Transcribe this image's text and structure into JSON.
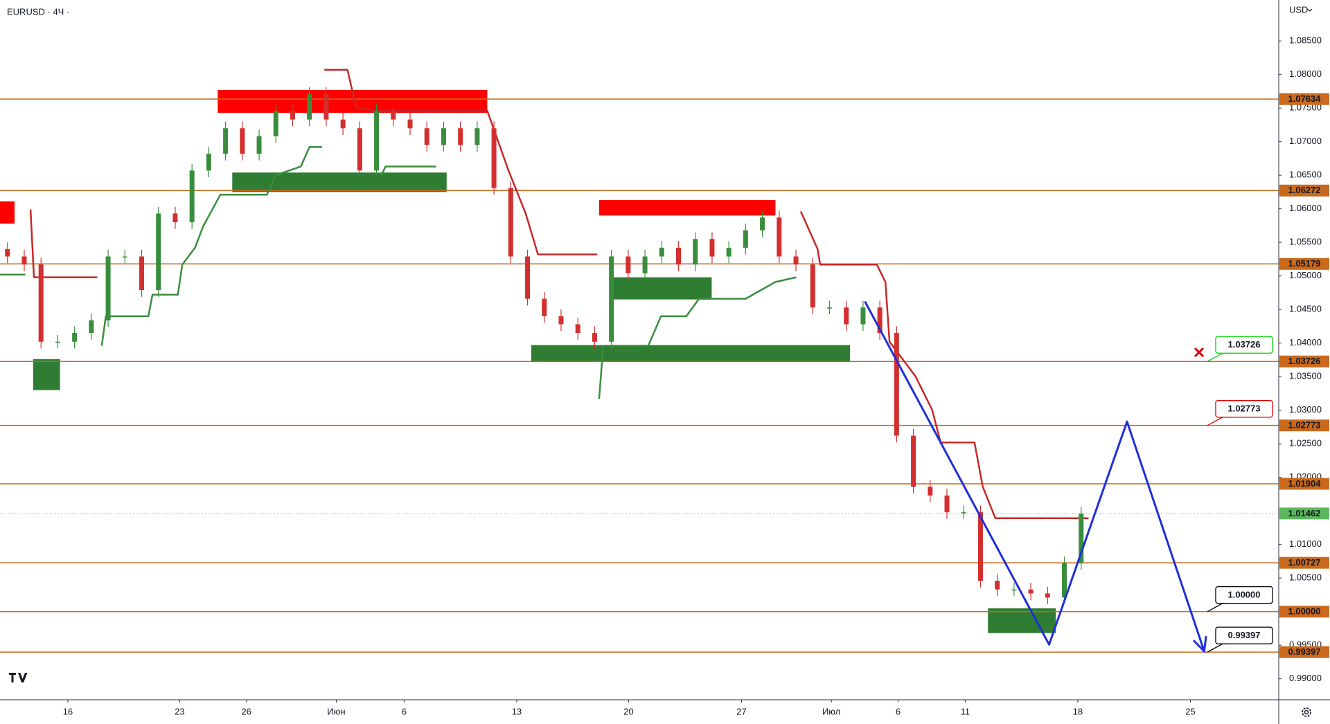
{
  "chart_data": {
    "type": "candlestick",
    "title": "EURUSD · 4Ч ·",
    "currency": "USD",
    "xlim": [
      0,
      343
    ],
    "ylim": [
      0.98687,
      1.0911
    ],
    "xticks": [
      {
        "value": 18.2,
        "label": "16"
      },
      {
        "value": 48.2,
        "label": "23"
      },
      {
        "value": 66.1,
        "label": "26"
      },
      {
        "value": 90.2,
        "label": "Июн"
      },
      {
        "value": 108.4,
        "label": "6"
      },
      {
        "value": 138.6,
        "label": "13"
      },
      {
        "value": 168.6,
        "label": "20"
      },
      {
        "value": 198.9,
        "label": "27"
      },
      {
        "value": 223,
        "label": "Июл"
      },
      {
        "value": 240.9,
        "label": "6"
      },
      {
        "value": 258.9,
        "label": "11"
      },
      {
        "value": 289.1,
        "label": "18"
      },
      {
        "value": 319.3,
        "label": "25"
      }
    ],
    "yticks": [
      {
        "value": 1.085,
        "label": "1.08500"
      },
      {
        "value": 1.08,
        "label": "1.08000"
      },
      {
        "value": 1.075,
        "label": "1.07500"
      },
      {
        "value": 1.07,
        "label": "1.07000"
      },
      {
        "value": 1.065,
        "label": "1.06500"
      },
      {
        "value": 1.06,
        "label": "1.06000"
      },
      {
        "value": 1.055,
        "label": "1.05500"
      },
      {
        "value": 1.05,
        "label": "1.05000"
      },
      {
        "value": 1.045,
        "label": "1.04500"
      },
      {
        "value": 1.04,
        "label": "1.04000"
      },
      {
        "value": 1.035,
        "label": "1.03500"
      },
      {
        "value": 1.03,
        "label": "1.03000"
      },
      {
        "value": 1.025,
        "label": "1.02500"
      },
      {
        "value": 1.02,
        "label": "1.02000"
      },
      {
        "value": 1.01,
        "label": "1.01000"
      },
      {
        "value": 1.005,
        "label": "1.00500"
      },
      {
        "value": 0.995,
        "label": "0.99500"
      },
      {
        "value": 0.99,
        "label": "0.99000"
      }
    ],
    "candles": {
      "up_color": "#388e3c",
      "down_color": "#d32f2f",
      "x": [
        2,
        6.5,
        11,
        15.5,
        20,
        24.5,
        29,
        33.5,
        38,
        42.5,
        47,
        51.5,
        56,
        60.5,
        65,
        69.5,
        74,
        78.5,
        83,
        87.5,
        92,
        96.5,
        101,
        105.5,
        110,
        114.5,
        119,
        123.5,
        128,
        132.5,
        137,
        141.5,
        146,
        150.5,
        155,
        159.5,
        164,
        168.5,
        173,
        177.5,
        182,
        186.5,
        191,
        195.5,
        200,
        204.5,
        209,
        213.5,
        218,
        222.5,
        227,
        231.5,
        236,
        240.5,
        245,
        249.5,
        254,
        258.5,
        263,
        267.5,
        272,
        276.5,
        281,
        285.5,
        290
      ],
      "open": [
        1.054,
        1.0529,
        1.0517,
        1.0402,
        1.0402,
        1.0415,
        1.0434,
        1.0529,
        1.0529,
        1.0479,
        1.0593,
        1.058,
        1.0657,
        1.0682,
        1.072,
        1.0682,
        1.0708,
        1.0746,
        1.0733,
        1.0771,
        1.0733,
        1.072,
        1.0657,
        1.0746,
        1.0733,
        1.072,
        1.0695,
        1.072,
        1.0695,
        1.072,
        1.0631,
        1.0529,
        1.0466,
        1.044,
        1.0428,
        1.0415,
        1.0402,
        1.0529,
        1.0504,
        1.0529,
        1.0542,
        1.0517,
        1.0555,
        1.0529,
        1.0542,
        1.0568,
        1.0587,
        1.0529,
        1.0517,
        1.0453,
        1.0453,
        1.0428,
        1.0453,
        1.0415,
        1.0262,
        1.0186,
        1.0173,
        1.0148,
        1.0148,
        1.0046,
        1.0033,
        1.0033,
        1.0027,
        1.0021,
        1.0072
      ],
      "high": [
        1.055,
        1.0539,
        1.0527,
        1.0412,
        1.0425,
        1.0444,
        1.0539,
        1.0539,
        1.0539,
        1.0603,
        1.0603,
        1.0667,
        1.0692,
        1.073,
        1.073,
        1.0718,
        1.0756,
        1.0756,
        1.0781,
        1.0781,
        1.0743,
        1.073,
        1.0756,
        1.0756,
        1.0743,
        1.073,
        1.073,
        1.073,
        1.073,
        1.073,
        1.0641,
        1.0539,
        1.0476,
        1.045,
        1.0438,
        1.0425,
        1.0539,
        1.0539,
        1.0539,
        1.0552,
        1.0552,
        1.0565,
        1.0565,
        1.0552,
        1.0578,
        1.0597,
        1.0597,
        1.0539,
        1.0527,
        1.0463,
        1.0463,
        1.0463,
        1.0463,
        1.0425,
        1.0272,
        1.0196,
        1.0183,
        1.0158,
        1.0158,
        1.0056,
        1.0043,
        1.0043,
        1.0037,
        1.0082,
        1.0156
      ],
      "low": [
        1.0519,
        1.0507,
        1.0392,
        1.0392,
        1.0392,
        1.0405,
        1.0424,
        1.0519,
        1.0469,
        1.0469,
        1.057,
        1.057,
        1.0647,
        1.0672,
        1.0672,
        1.0672,
        1.0698,
        1.0723,
        1.0723,
        1.0723,
        1.071,
        1.0647,
        1.0647,
        1.0723,
        1.071,
        1.0685,
        1.0685,
        1.0685,
        1.0685,
        1.0621,
        1.0519,
        1.0456,
        1.043,
        1.0418,
        1.0405,
        1.0392,
        1.0392,
        1.0494,
        1.0494,
        1.0519,
        1.0507,
        1.0507,
        1.0519,
        1.0519,
        1.0532,
        1.0558,
        1.0519,
        1.0507,
        1.0443,
        1.0443,
        1.0418,
        1.0418,
        1.0405,
        1.0252,
        1.0176,
        1.0163,
        1.0138,
        1.0138,
        1.0036,
        1.0023,
        1.0023,
        1.0017,
        1.0011,
        1.0011,
        1.0062
      ],
      "close": [
        1.0529,
        1.0517,
        1.0402,
        1.0402,
        1.0415,
        1.0434,
        1.0529,
        1.0529,
        1.0479,
        1.0593,
        1.058,
        1.0657,
        1.0682,
        1.072,
        1.0682,
        1.0708,
        1.0746,
        1.0733,
        1.0771,
        1.0733,
        1.072,
        1.0657,
        1.0746,
        1.0733,
        1.072,
        1.0695,
        1.072,
        1.0695,
        1.072,
        1.0631,
        1.0529,
        1.0466,
        1.044,
        1.0428,
        1.0415,
        1.0402,
        1.0529,
        1.0504,
        1.0529,
        1.0542,
        1.0517,
        1.0555,
        1.0529,
        1.0542,
        1.0568,
        1.0587,
        1.0529,
        1.0517,
        1.0453,
        1.0453,
        1.0428,
        1.0453,
        1.0415,
        1.0262,
        1.0186,
        1.0173,
        1.0148,
        1.0148,
        1.0046,
        1.0033,
        1.0033,
        1.0027,
        1.0021,
        1.0072,
        1.0146
      ]
    },
    "lines": [
      {
        "color": "#c62828",
        "x": [
          8.2,
          9.1,
          26.1,
          null,
          87,
          93.2,
          95.5,
          100,
          130.7,
          136.4,
          141,
          144.3,
          160.2,
          null,
          214.8,
          219.3,
          220,
          235.2,
          237.5,
          238.6,
          245.5,
          250,
          252.3,
          261.4,
          263.6,
          267,
          292
        ],
        "values": [
          1.0599,
          1.0498,
          1.0498,
          null,
          1.0807,
          1.0807,
          1.0752,
          1.0746,
          1.0746,
          1.0657,
          1.0593,
          1.0532,
          1.0532,
          null,
          1.0596,
          1.054,
          1.0517,
          1.0517,
          1.0491,
          1.0402,
          1.0351,
          1.0301,
          1.0252,
          1.0252,
          1.0186,
          1.0139,
          1.0139
        ]
      },
      {
        "color": "#388e3c",
        "x": [
          0,
          6.8,
          null,
          27.3,
          28.4,
          39.8,
          40.9,
          47.7,
          48.9,
          52.3,
          54.5,
          59.1,
          71.6,
          73.9,
          80.7,
          83,
          86.4,
          null,
          102.3,
          103.4,
          117,
          null,
          160.7,
          161.8,
          173.9,
          177.3,
          184.1,
          187.5,
          200,
          208,
          213.6
        ],
        "values": [
          1.0502,
          1.0502,
          null,
          1.0396,
          1.044,
          1.044,
          1.0472,
          1.0472,
          1.0517,
          1.0542,
          1.0574,
          1.0621,
          1.0621,
          1.065,
          1.0663,
          1.0692,
          1.0692,
          null,
          1.065,
          1.0663,
          1.0663,
          null,
          1.0317,
          1.0396,
          1.0396,
          1.044,
          1.044,
          1.0466,
          1.0466,
          1.0491,
          1.0498
        ]
      }
    ],
    "zones": [
      {
        "color": "#ff0000",
        "x": [
          58.4,
          130.7
        ],
        "y": [
          1.0777,
          1.0743
        ]
      },
      {
        "color": "#ff0000",
        "x": [
          0,
          3.9
        ],
        "y": [
          1.0611,
          1.0578
        ]
      },
      {
        "color": "#ff0000",
        "x": [
          160.7,
          208
        ],
        "y": [
          1.0613,
          1.059
        ]
      },
      {
        "color": "#2e7d32",
        "x": [
          62.3,
          119.8
        ],
        "y": [
          1.0654,
          1.0625
        ]
      },
      {
        "color": "#2e7d32",
        "x": [
          8.9,
          16.1
        ],
        "y": [
          1.0376,
          1.033
        ]
      },
      {
        "color": "#2e7d32",
        "x": [
          164.5,
          190.9
        ],
        "y": [
          1.0498,
          1.0465
        ]
      },
      {
        "color": "#2e7d32",
        "x": [
          142.5,
          228
        ],
        "y": [
          1.0397,
          1.0373
        ]
      },
      {
        "color": "#2e7d32",
        "x": [
          265,
          283.2
        ],
        "y": [
          1.0005,
          0.9968
        ]
      }
    ],
    "levels": {
      "color": "#c8691c",
      "values": [
        1.07634,
        1.06272,
        1.05179,
        1.03726,
        1.02773,
        1.01904,
        1.00727,
        1.0,
        0.99397
      ],
      "value_labels": [
        "1.07634",
        "1.06272",
        "1.05179",
        "1.03726",
        "1.02773",
        "1.01904",
        "1.00727",
        "1.00000",
        "0.99397"
      ]
    },
    "current_price": {
      "value": 1.01462,
      "label": "1.01462",
      "color": "#5cb85c"
    },
    "callouts": {
      "values": [
        1.03726,
        1.02773,
        1.0,
        0.99397
      ],
      "value_labels": [
        "1.03726",
        "1.02773",
        "1.00000",
        "0.99397"
      ],
      "colors": [
        "#00d000",
        "#e00000",
        "#000000",
        "#000000"
      ]
    },
    "projection": {
      "color": "#1f2fd6",
      "x": [
        232,
        281.4,
        302.3,
        323
      ],
      "values": [
        1.0462,
        0.9951,
        1.0283,
        0.9941
      ]
    }
  }
}
